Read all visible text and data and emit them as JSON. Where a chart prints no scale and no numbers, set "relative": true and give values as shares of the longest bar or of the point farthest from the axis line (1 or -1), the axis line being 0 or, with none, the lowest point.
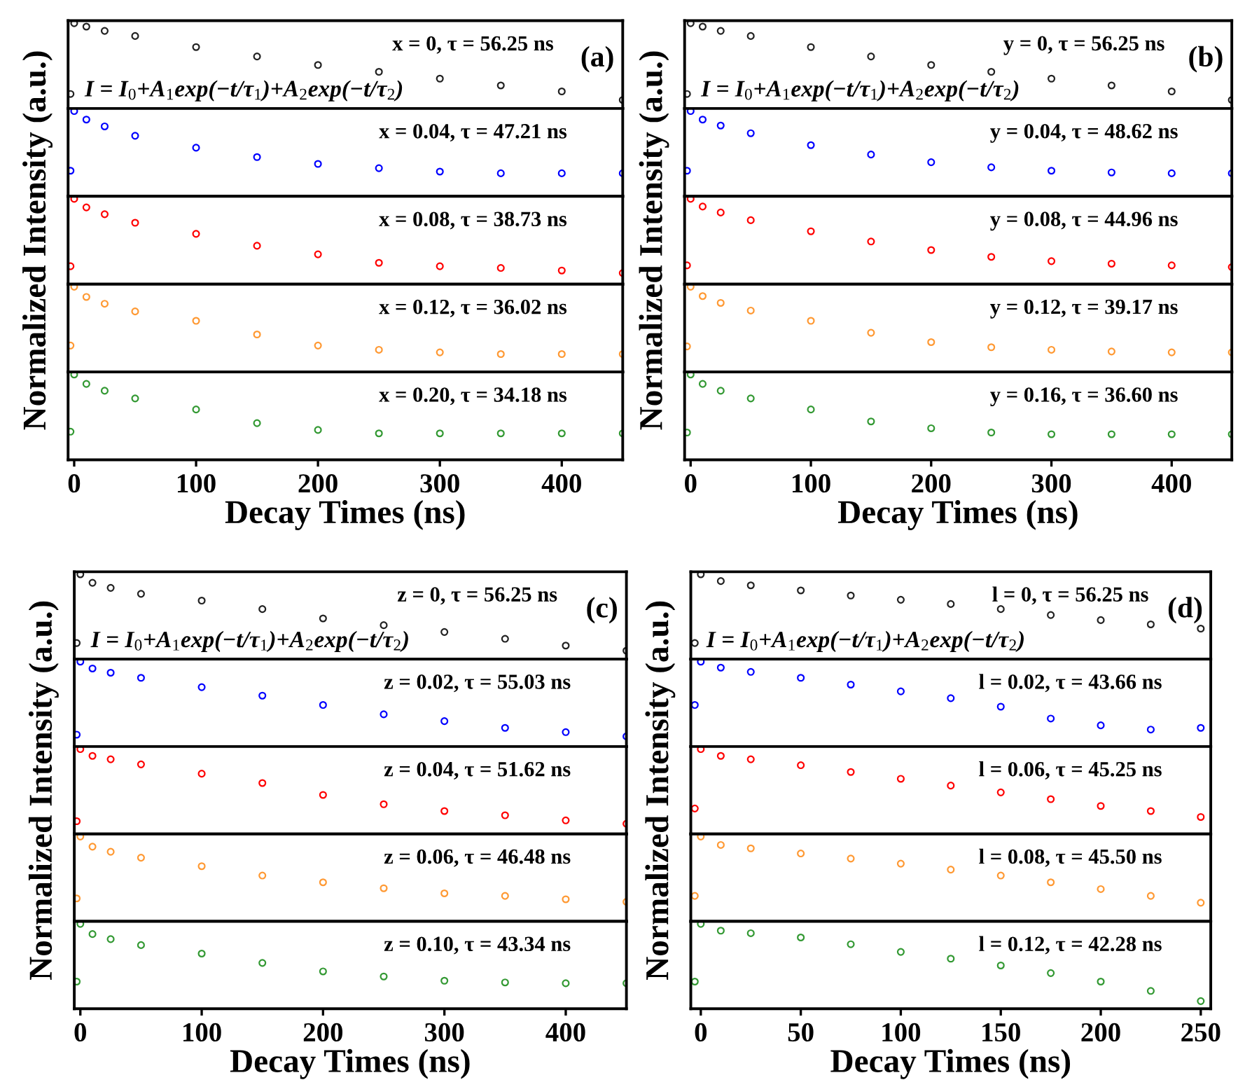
{
  "chart_data": [
    {
      "type": "scatter",
      "relative": true,
      "marker": "circle",
      "xlim": [
        -5,
        450
      ],
      "tick_labels": false,
      "annotations": [
        "x = 0, τ = 56.25 ns",
        "(a)",
        "I = I$_{0}$+A$_{1}$exp(−t/τ$_{1}$)+A$_{2}$exp(−t/τ$_{2}$)"
      ],
      "series": [
        {
          "color": "#222222",
          "x": [
            -3,
            0,
            10,
            25,
            50,
            100,
            150,
            200,
            250,
            300,
            350,
            400,
            450
          ],
          "values": [
            0.17,
            1.0,
            0.96,
            0.91,
            0.85,
            0.72,
            0.61,
            0.51,
            0.43,
            0.35,
            0.27,
            0.2,
            0.1
          ]
        }
      ]
    },
    {
      "type": "scatter",
      "relative": true,
      "marker": "circle",
      "xlim": [
        -5,
        450
      ],
      "tick_labels": false,
      "annotations": [
        "x = 0.04, τ = 47.21 ns"
      ],
      "series": [
        {
          "color": "#0000ff",
          "x": [
            -3,
            0,
            10,
            25,
            50,
            100,
            150,
            200,
            250,
            300,
            350,
            400,
            450
          ],
          "values": [
            0.3,
            1.0,
            0.9,
            0.82,
            0.71,
            0.57,
            0.46,
            0.38,
            0.33,
            0.29,
            0.27,
            0.27,
            0.27
          ]
        }
      ]
    },
    {
      "type": "scatter",
      "relative": true,
      "marker": "circle",
      "xlim": [
        -5,
        450
      ],
      "tick_labels": false,
      "ylabel": "Normalized Intensity (a.u.)",
      "annotations": [
        "x = 0.08, τ = 38.73 ns"
      ],
      "series": [
        {
          "color": "#ff0000",
          "x": [
            -3,
            0,
            10,
            25,
            50,
            100,
            150,
            200,
            250,
            300,
            350,
            400,
            450
          ],
          "values": [
            0.21,
            1.0,
            0.9,
            0.82,
            0.72,
            0.59,
            0.45,
            0.35,
            0.25,
            0.21,
            0.19,
            0.16,
            0.13
          ]
        }
      ]
    },
    {
      "type": "scatter",
      "relative": true,
      "marker": "circle",
      "xlim": [
        -5,
        450
      ],
      "tick_labels": false,
      "annotations": [
        "x = 0.12, τ = 36.02 ns"
      ],
      "series": [
        {
          "color": "#ff9933",
          "x": [
            -3,
            0,
            10,
            25,
            50,
            100,
            150,
            200,
            250,
            300,
            350,
            400,
            450
          ],
          "values": [
            0.31,
            1.0,
            0.88,
            0.8,
            0.71,
            0.6,
            0.44,
            0.31,
            0.26,
            0.23,
            0.21,
            0.21,
            0.21
          ]
        }
      ]
    },
    {
      "type": "scatter",
      "relative": true,
      "marker": "circle",
      "xlim": [
        -5,
        450
      ],
      "xticks": [
        0,
        100,
        200,
        300,
        400
      ],
      "tick_labels": "x",
      "xlabel": "Decay Times (ns)",
      "annotations": [
        "x = 0.20, τ = 34.18 ns"
      ],
      "series": [
        {
          "color": "#339933",
          "x": [
            -3,
            0,
            10,
            25,
            50,
            100,
            150,
            200,
            250,
            300,
            350,
            400,
            450
          ],
          "values": [
            0.33,
            1.0,
            0.89,
            0.81,
            0.72,
            0.59,
            0.43,
            0.35,
            0.31,
            0.31,
            0.31,
            0.31,
            0.31
          ]
        }
      ]
    },
    {
      "type": "scatter",
      "relative": true,
      "marker": "circle",
      "xlim": [
        -5,
        450
      ],
      "tick_labels": false,
      "annotations": [
        "y = 0, τ = 56.25 ns",
        "(b)",
        "I = I$_{0}$+A$_{1}$exp(−t/τ$_{1}$)+A$_{2}$exp(−t/τ$_{2}$)"
      ],
      "series": [
        {
          "color": "#222222",
          "x": [
            -3,
            0,
            10,
            25,
            50,
            100,
            150,
            200,
            250,
            300,
            350,
            400,
            450
          ],
          "values": [
            0.17,
            1.0,
            0.96,
            0.91,
            0.85,
            0.72,
            0.61,
            0.51,
            0.43,
            0.35,
            0.27,
            0.2,
            0.1
          ]
        }
      ]
    },
    {
      "type": "scatter",
      "relative": true,
      "marker": "circle",
      "xlim": [
        -5,
        450
      ],
      "tick_labels": false,
      "annotations": [
        "y = 0.04, τ = 48.62 ns"
      ],
      "series": [
        {
          "color": "#0000ff",
          "x": [
            -3,
            0,
            10,
            25,
            50,
            100,
            150,
            200,
            250,
            300,
            350,
            400,
            450
          ],
          "values": [
            0.3,
            1.0,
            0.9,
            0.83,
            0.74,
            0.6,
            0.49,
            0.4,
            0.34,
            0.3,
            0.28,
            0.27,
            0.27
          ]
        }
      ]
    },
    {
      "type": "scatter",
      "relative": true,
      "marker": "circle",
      "xlim": [
        -5,
        450
      ],
      "tick_labels": false,
      "ylabel": "Normalized Intensity (a.u.)",
      "annotations": [
        "y = 0.08, τ = 44.96 ns"
      ],
      "series": [
        {
          "color": "#ff0000",
          "x": [
            -3,
            0,
            10,
            25,
            50,
            100,
            150,
            200,
            250,
            300,
            350,
            400,
            450
          ],
          "values": [
            0.22,
            1.0,
            0.91,
            0.84,
            0.75,
            0.62,
            0.5,
            0.4,
            0.32,
            0.27,
            0.24,
            0.22,
            0.2
          ]
        }
      ]
    },
    {
      "type": "scatter",
      "relative": true,
      "marker": "circle",
      "xlim": [
        -5,
        450
      ],
      "tick_labels": false,
      "annotations": [
        "y = 0.12, τ = 39.17 ns"
      ],
      "series": [
        {
          "color": "#ff9933",
          "x": [
            -3,
            0,
            10,
            25,
            50,
            100,
            150,
            200,
            250,
            300,
            350,
            400,
            450
          ],
          "values": [
            0.3,
            1.0,
            0.89,
            0.81,
            0.72,
            0.6,
            0.46,
            0.35,
            0.29,
            0.26,
            0.24,
            0.23,
            0.23
          ]
        }
      ]
    },
    {
      "type": "scatter",
      "relative": true,
      "marker": "circle",
      "xlim": [
        -5,
        450
      ],
      "xticks": [
        0,
        100,
        200,
        300,
        400
      ],
      "tick_labels": "x",
      "xlabel": "Decay Times (ns)",
      "annotations": [
        "y = 0.16, τ = 36.60 ns"
      ],
      "series": [
        {
          "color": "#339933",
          "x": [
            -3,
            0,
            10,
            25,
            50,
            100,
            150,
            200,
            250,
            300,
            350,
            400,
            450
          ],
          "values": [
            0.32,
            1.0,
            0.89,
            0.81,
            0.72,
            0.59,
            0.45,
            0.37,
            0.32,
            0.3,
            0.3,
            0.3,
            0.3
          ]
        }
      ]
    },
    {
      "type": "scatter",
      "relative": true,
      "marker": "circle",
      "xlim": [
        -5,
        450
      ],
      "tick_labels": false,
      "annotations": [
        "z = 0, τ = 56.25 ns",
        "(c)",
        "I = I$_{0}$+A$_{1}$exp(−t/τ$_{1}$)+A$_{2}$exp(−t/τ$_{2}$)"
      ],
      "series": [
        {
          "color": "#222222",
          "x": [
            -3,
            0,
            10,
            25,
            50,
            100,
            150,
            200,
            250,
            300,
            350,
            400,
            450
          ],
          "values": [
            0.19,
            1.0,
            0.9,
            0.84,
            0.77,
            0.69,
            0.59,
            0.48,
            0.4,
            0.32,
            0.24,
            0.16,
            0.1
          ]
        }
      ]
    },
    {
      "type": "scatter",
      "relative": true,
      "marker": "circle",
      "xlim": [
        -5,
        450
      ],
      "tick_labels": false,
      "annotations": [
        "z = 0.02, τ = 55.03 ns"
      ],
      "series": [
        {
          "color": "#0000ff",
          "x": [
            -3,
            0,
            10,
            25,
            50,
            100,
            150,
            200,
            250,
            300,
            350,
            400,
            450
          ],
          "values": [
            0.14,
            1.0,
            0.92,
            0.87,
            0.81,
            0.7,
            0.6,
            0.49,
            0.38,
            0.3,
            0.22,
            0.17,
            0.12
          ]
        }
      ]
    },
    {
      "type": "scatter",
      "relative": true,
      "marker": "circle",
      "xlim": [
        -5,
        450
      ],
      "tick_labels": false,
      "ylabel": "Normalized Intensity (a.u.)",
      "annotations": [
        "z = 0.04, τ = 51.62 ns"
      ],
      "series": [
        {
          "color": "#ff0000",
          "x": [
            -3,
            0,
            10,
            25,
            50,
            100,
            150,
            200,
            250,
            300,
            350,
            400,
            450
          ],
          "values": [
            0.15,
            1.0,
            0.92,
            0.88,
            0.82,
            0.71,
            0.6,
            0.46,
            0.35,
            0.27,
            0.22,
            0.16,
            0.12
          ]
        }
      ]
    },
    {
      "type": "scatter",
      "relative": true,
      "marker": "circle",
      "xlim": [
        -5,
        450
      ],
      "tick_labels": false,
      "annotations": [
        "z = 0.06, τ = 46.48 ns"
      ],
      "series": [
        {
          "color": "#ff9933",
          "x": [
            -3,
            0,
            10,
            25,
            50,
            100,
            150,
            200,
            250,
            300,
            350,
            400,
            450
          ],
          "values": [
            0.27,
            1.0,
            0.88,
            0.82,
            0.75,
            0.65,
            0.54,
            0.46,
            0.39,
            0.33,
            0.3,
            0.26,
            0.23
          ]
        }
      ]
    },
    {
      "type": "scatter",
      "relative": true,
      "marker": "circle",
      "xlim": [
        -5,
        450
      ],
      "xticks": [
        0,
        100,
        200,
        300,
        400
      ],
      "tick_labels": "x",
      "xlabel": "Decay Times (ns)",
      "annotations": [
        "z = 0.10, τ = 43.34 ns"
      ],
      "series": [
        {
          "color": "#339933",
          "x": [
            -3,
            0,
            10,
            25,
            50,
            100,
            150,
            200,
            250,
            300,
            350,
            400,
            450
          ],
          "values": [
            0.32,
            1.0,
            0.88,
            0.82,
            0.75,
            0.65,
            0.54,
            0.44,
            0.38,
            0.33,
            0.31,
            0.3,
            0.3
          ]
        }
      ]
    },
    {
      "type": "scatter",
      "relative": true,
      "marker": "circle",
      "xlim": [
        -5,
        255
      ],
      "tick_labels": false,
      "annotations": [
        "l = 0, τ = 56.25 ns",
        "(d)",
        "I = I$_{0}$+A$_{1}$exp(−t/τ$_{1}$)+A$_{2}$exp(−t/τ$_{2}$)"
      ],
      "series": [
        {
          "color": "#222222",
          "x": [
            -3,
            0,
            10,
            25,
            50,
            75,
            100,
            125,
            150,
            175,
            200,
            225,
            250
          ],
          "values": [
            0.19,
            1.0,
            0.92,
            0.87,
            0.81,
            0.75,
            0.7,
            0.65,
            0.59,
            0.52,
            0.46,
            0.41,
            0.36
          ]
        }
      ]
    },
    {
      "type": "scatter",
      "relative": true,
      "marker": "circle",
      "xlim": [
        -5,
        255
      ],
      "tick_labels": false,
      "annotations": [
        "l = 0.02, τ = 43.66 ns"
      ],
      "series": [
        {
          "color": "#0000ff",
          "x": [
            -3,
            0,
            10,
            25,
            50,
            75,
            100,
            125,
            150,
            175,
            200,
            225,
            250
          ],
          "values": [
            0.49,
            1.0,
            0.93,
            0.88,
            0.81,
            0.73,
            0.65,
            0.57,
            0.47,
            0.33,
            0.25,
            0.2,
            0.22
          ]
        }
      ]
    },
    {
      "type": "scatter",
      "relative": true,
      "marker": "circle",
      "xlim": [
        -5,
        255
      ],
      "tick_labels": false,
      "ylabel": "Normalized Intensity (a.u.)",
      "annotations": [
        "l = 0.06, τ = 45.25 ns"
      ],
      "series": [
        {
          "color": "#ff0000",
          "x": [
            -3,
            0,
            10,
            25,
            50,
            75,
            100,
            125,
            150,
            175,
            200,
            225,
            250
          ],
          "values": [
            0.3,
            1.0,
            0.92,
            0.88,
            0.81,
            0.73,
            0.65,
            0.57,
            0.49,
            0.41,
            0.33,
            0.27,
            0.2
          ]
        }
      ]
    },
    {
      "type": "scatter",
      "relative": true,
      "marker": "circle",
      "xlim": [
        -5,
        255
      ],
      "tick_labels": false,
      "annotations": [
        "l = 0.08, τ = 45.50 ns"
      ],
      "series": [
        {
          "color": "#ff9933",
          "x": [
            -3,
            0,
            10,
            25,
            50,
            75,
            100,
            125,
            150,
            175,
            200,
            225,
            250
          ],
          "values": [
            0.3,
            1.0,
            0.9,
            0.86,
            0.8,
            0.74,
            0.68,
            0.61,
            0.54,
            0.46,
            0.38,
            0.3,
            0.22
          ]
        }
      ]
    },
    {
      "type": "scatter",
      "relative": true,
      "marker": "circle",
      "xlim": [
        -5,
        255
      ],
      "xticks": [
        0,
        50,
        100,
        150,
        200,
        250
      ],
      "tick_labels": "x",
      "xlabel": "Decay Times (ns)",
      "annotations": [
        "l = 0.12, τ = 42.28 ns"
      ],
      "series": [
        {
          "color": "#339933",
          "x": [
            -3,
            0,
            10,
            25,
            50,
            75,
            100,
            125,
            150,
            175,
            200,
            225,
            250
          ],
          "values": [
            0.32,
            1.0,
            0.92,
            0.89,
            0.84,
            0.76,
            0.67,
            0.59,
            0.51,
            0.42,
            0.32,
            0.21,
            0.09
          ]
        }
      ]
    }
  ]
}
